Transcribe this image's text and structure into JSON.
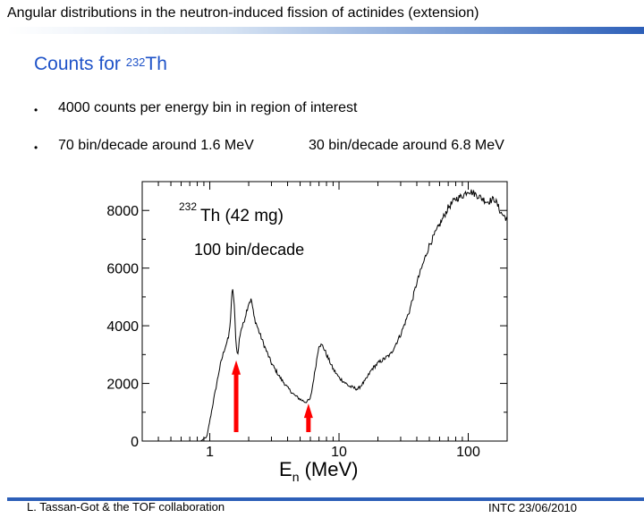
{
  "slide": {
    "title": "Angular distributions in the neutron-induced fission of actinides (extension)",
    "heading": {
      "prefix": "Counts for ",
      "isotope_mass": "232",
      "isotope_symbol": "Th"
    },
    "bullets": [
      {
        "marker": "•",
        "text": "4000 counts per energy bin in region of interest"
      },
      {
        "marker": "•",
        "text": "70 bin/decade around 1.6 MeV",
        "text2": "30 bin/decade around 6.8 MeV"
      }
    ],
    "footer_left": "L. Tassan-Got & the TOF collaboration",
    "footer_right": "INTC 23/06/2010"
  },
  "chart_data": {
    "type": "line",
    "x_scale": "log",
    "xlim": [
      0.3,
      200
    ],
    "ylim": [
      0,
      9000
    ],
    "xlabel": "E",
    "xlabel_sub": "n",
    "xlabel_unit": " (MeV)",
    "x_ticks": [
      1,
      10,
      100
    ],
    "x_tick_labels": [
      "1",
      "10",
      "100"
    ],
    "y_ticks": [
      0,
      2000,
      4000,
      6000,
      8000
    ],
    "y_tick_labels": [
      "0",
      "2000",
      "4000",
      "6000",
      "8000"
    ],
    "annotation_mass": "232",
    "annotation_text": "Th (42 mg)",
    "annotation_line2": "100 bin/decade",
    "arrows": [
      {
        "energy": 1.6,
        "counts_tip": 2800,
        "color": "#ff0000"
      },
      {
        "energy": 5.8,
        "counts_tip": 1300,
        "color": "#ff0000"
      }
    ],
    "series": [
      {
        "name": "232Th (42 mg)",
        "x": [
          0.85,
          0.95,
          1.0,
          1.1,
          1.2,
          1.3,
          1.4,
          1.45,
          1.5,
          1.55,
          1.6,
          1.65,
          1.7,
          1.75,
          1.8,
          1.9,
          2.0,
          2.1,
          2.2,
          2.4,
          2.7,
          3.0,
          3.5,
          4.0,
          4.5,
          5.0,
          5.5,
          6.0,
          6.5,
          7.0,
          7.5,
          8.0,
          9.0,
          10,
          12,
          14,
          16,
          18,
          20,
          25,
          30,
          35,
          40,
          50,
          60,
          70,
          80,
          90,
          100,
          110,
          120,
          140,
          160,
          180,
          200
        ],
        "y": [
          0,
          150,
          700,
          1700,
          2600,
          3200,
          3600,
          4300,
          5400,
          4600,
          3300,
          3000,
          3600,
          3900,
          4000,
          4400,
          4800,
          4900,
          4300,
          3800,
          3200,
          2700,
          2200,
          1850,
          1600,
          1450,
          1350,
          1450,
          2400,
          3350,
          3300,
          3000,
          2500,
          2200,
          1900,
          1800,
          2100,
          2500,
          2700,
          3000,
          3700,
          4500,
          5500,
          6800,
          7500,
          8100,
          8400,
          8500,
          8700,
          8600,
          8500,
          8300,
          8400,
          7900,
          7700
        ]
      }
    ]
  }
}
